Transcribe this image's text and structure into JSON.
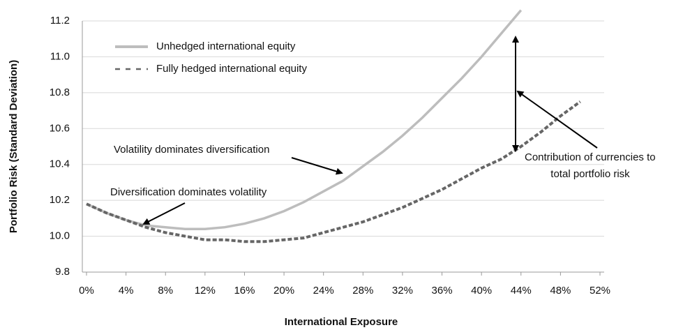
{
  "chart_data": {
    "type": "line",
    "y_label": "Portfolio Risk (Standard Deviation)",
    "x_label": "International Exposure",
    "x": [
      0,
      2,
      4,
      6,
      8,
      10,
      12,
      14,
      16,
      18,
      20,
      22,
      24,
      26,
      28,
      30,
      32,
      34,
      36,
      38,
      40,
      42,
      44,
      46,
      48,
      50
    ],
    "series": [
      {
        "name": "Unhedged international equity",
        "color": "#bdbdbd",
        "dash": "solid",
        "values": [
          10.18,
          10.13,
          10.09,
          10.06,
          10.05,
          10.04,
          10.04,
          10.05,
          10.07,
          10.1,
          10.14,
          10.19,
          10.25,
          10.31,
          10.39,
          10.47,
          10.56,
          10.66,
          10.77,
          10.88,
          11.0,
          11.13,
          11.26,
          null,
          null,
          null
        ]
      },
      {
        "name": "Fully hedged international equity",
        "color": "#666666",
        "dash": "dashed",
        "values": [
          10.18,
          10.13,
          10.09,
          10.05,
          10.02,
          10.0,
          9.98,
          9.98,
          9.97,
          9.97,
          9.98,
          9.99,
          10.02,
          10.05,
          10.08,
          10.12,
          10.16,
          10.21,
          10.26,
          10.32,
          10.38,
          10.43,
          10.5,
          10.58,
          10.67,
          10.75
        ]
      }
    ],
    "xlim": [
      0,
      52
    ],
    "xticks": [
      {
        "value": 0,
        "label": "0%"
      },
      {
        "value": 4,
        "label": "4%"
      },
      {
        "value": 8,
        "label": "8%"
      },
      {
        "value": 12,
        "label": "12%"
      },
      {
        "value": 16,
        "label": "16%"
      },
      {
        "value": 20,
        "label": "20%"
      },
      {
        "value": 24,
        "label": "24%"
      },
      {
        "value": 28,
        "label": "28%"
      },
      {
        "value": 32,
        "label": "32%"
      },
      {
        "value": 36,
        "label": "36%"
      },
      {
        "value": 40,
        "label": "40%"
      },
      {
        "value": 44,
        "label": "44%"
      },
      {
        "value": 48,
        "label": "48%"
      },
      {
        "value": 52,
        "label": "52%"
      }
    ],
    "ylim": [
      9.8,
      11.2
    ],
    "yticks": [
      9.8,
      {
        "value": 10.0,
        "label": "10.0"
      },
      10.2,
      10.4,
      10.6,
      10.8,
      {
        "value": 11.0,
        "label": "11.0"
      },
      11.2
    ],
    "grid": true,
    "annotations": [
      "Volatility  dominates diversification",
      "Diversification dominates volatility",
      "Contribution of currencies to",
      "total portfolio risk"
    ]
  }
}
